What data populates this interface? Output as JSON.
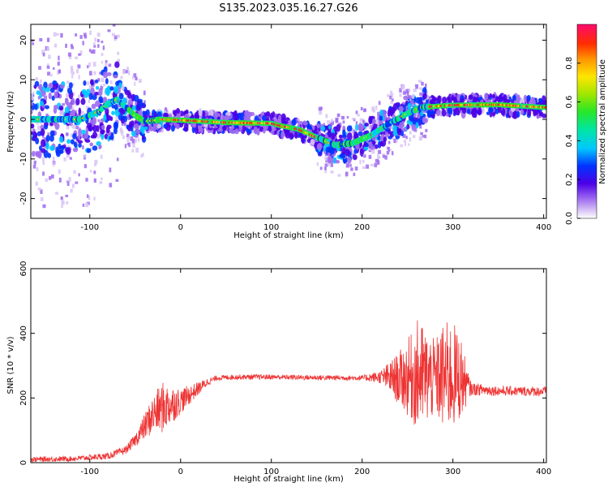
{
  "figure": {
    "title": "S135.2023.035.16.27.G26"
  },
  "chart_data": [
    {
      "type": "heatmap",
      "xlabel": "Height of straight line (km)",
      "ylabel": "Frequency (Hz)",
      "xlim": [
        -165,
        403
      ],
      "ylim": [
        -25,
        24
      ],
      "xticks": [
        -100,
        0,
        100,
        200,
        300,
        400
      ],
      "yticks": [
        -20,
        -10,
        0,
        10,
        20
      ],
      "colorbar": {
        "label": "Normalized spectral amplitude",
        "range": [
          0,
          1
        ],
        "ticks": [
          0.0,
          0.2,
          0.4,
          0.6,
          0.8
        ]
      },
      "ridge": {
        "x": [
          -165,
          -140,
          -110,
          -90,
          -80,
          -70,
          -60,
          -50,
          -40,
          -30,
          -20,
          0,
          50,
          100,
          110,
          130,
          150,
          170,
          190,
          210,
          230,
          250,
          265,
          270,
          275,
          300,
          350,
          403
        ],
        "frequency": [
          0,
          0,
          0,
          2,
          4,
          5,
          3,
          1,
          -0.5,
          -0.3,
          0,
          -0.2,
          -0.8,
          -1.0,
          -1.6,
          -2.5,
          -4.5,
          -6.5,
          -6.0,
          -4.0,
          -1.0,
          1.5,
          3.0,
          3.2,
          3.2,
          3.6,
          3.7,
          3.0
        ]
      }
    },
    {
      "type": "line",
      "xlabel": "Height of straight line (km)",
      "ylabel": "SNR (10 * v/v)",
      "xlim": [
        -165,
        403
      ],
      "ylim": [
        0,
        600
      ],
      "xticks": [
        -100,
        0,
        100,
        200,
        300,
        400
      ],
      "yticks": [
        0,
        200,
        400,
        600
      ],
      "color": "#ee3333",
      "envelope": {
        "x": [
          -165,
          -120,
          -80,
          -60,
          -50,
          -40,
          -30,
          -20,
          -10,
          0,
          10,
          20,
          30,
          40,
          60,
          100,
          150,
          200,
          220,
          240,
          255,
          262,
          270,
          280,
          290,
          300,
          310,
          315,
          320,
          350,
          403
        ],
        "mean": [
          10,
          12,
          20,
          40,
          70,
          110,
          150,
          170,
          180,
          190,
          210,
          230,
          250,
          262,
          265,
          265,
          263,
          262,
          265,
          260,
          265,
          270,
          265,
          260,
          265,
          270,
          260,
          240,
          228,
          222,
          220
        ],
        "spread": [
          8,
          8,
          10,
          12,
          20,
          40,
          60,
          80,
          60,
          40,
          30,
          20,
          12,
          8,
          8,
          8,
          8,
          8,
          20,
          80,
          140,
          180,
          150,
          120,
          170,
          170,
          120,
          60,
          20,
          15,
          15
        ]
      }
    }
  ]
}
